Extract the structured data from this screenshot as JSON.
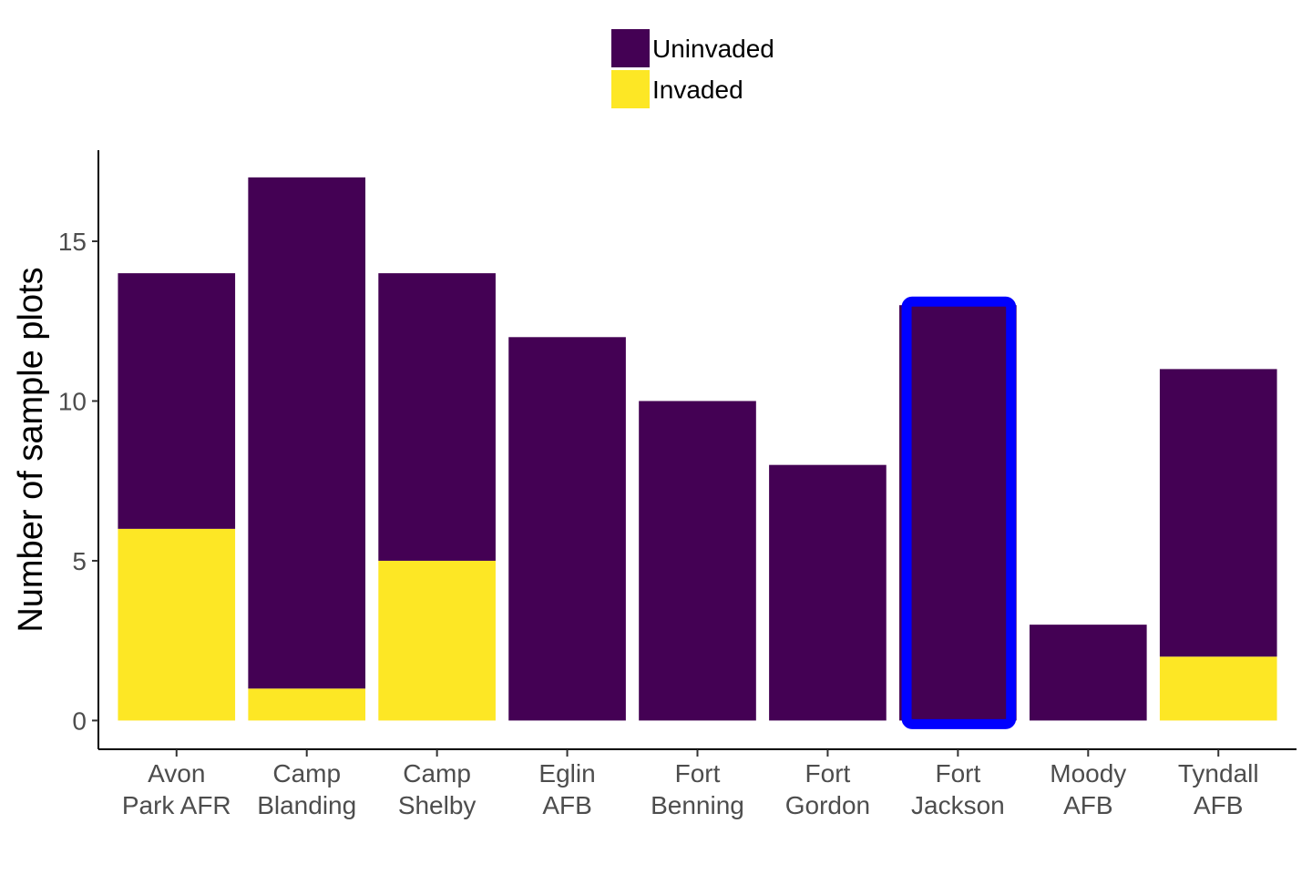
{
  "chart_data": {
    "type": "bar",
    "stacked": true,
    "categories": [
      [
        "Avon",
        "Park AFR"
      ],
      [
        "Camp",
        "Blanding"
      ],
      [
        "Camp",
        "Shelby"
      ],
      [
        "Eglin",
        "AFB"
      ],
      [
        "Fort",
        "Benning"
      ],
      [
        "Fort",
        "Gordon"
      ],
      [
        "Fort",
        "Jackson"
      ],
      [
        "Moody",
        "AFB"
      ],
      [
        "Tyndall",
        "AFB"
      ]
    ],
    "series": [
      {
        "name": "Invaded",
        "color": "#FDE725",
        "values": [
          6,
          1,
          5,
          0,
          0,
          0,
          0,
          0,
          2
        ]
      },
      {
        "name": "Uninvaded",
        "color": "#440154",
        "values": [
          8,
          16,
          9,
          12,
          10,
          8,
          13,
          3,
          9
        ]
      }
    ],
    "legend_order": [
      "Uninvaded",
      "Invaded"
    ],
    "xlabel": "",
    "ylabel": "Number of sample plots",
    "ylim": [
      -0.9,
      17.85
    ],
    "yticks": [
      0,
      5,
      10,
      15
    ],
    "grid": false,
    "legend_position": "top",
    "highlight": {
      "category_index": 6,
      "color": "#0000FF"
    }
  }
}
